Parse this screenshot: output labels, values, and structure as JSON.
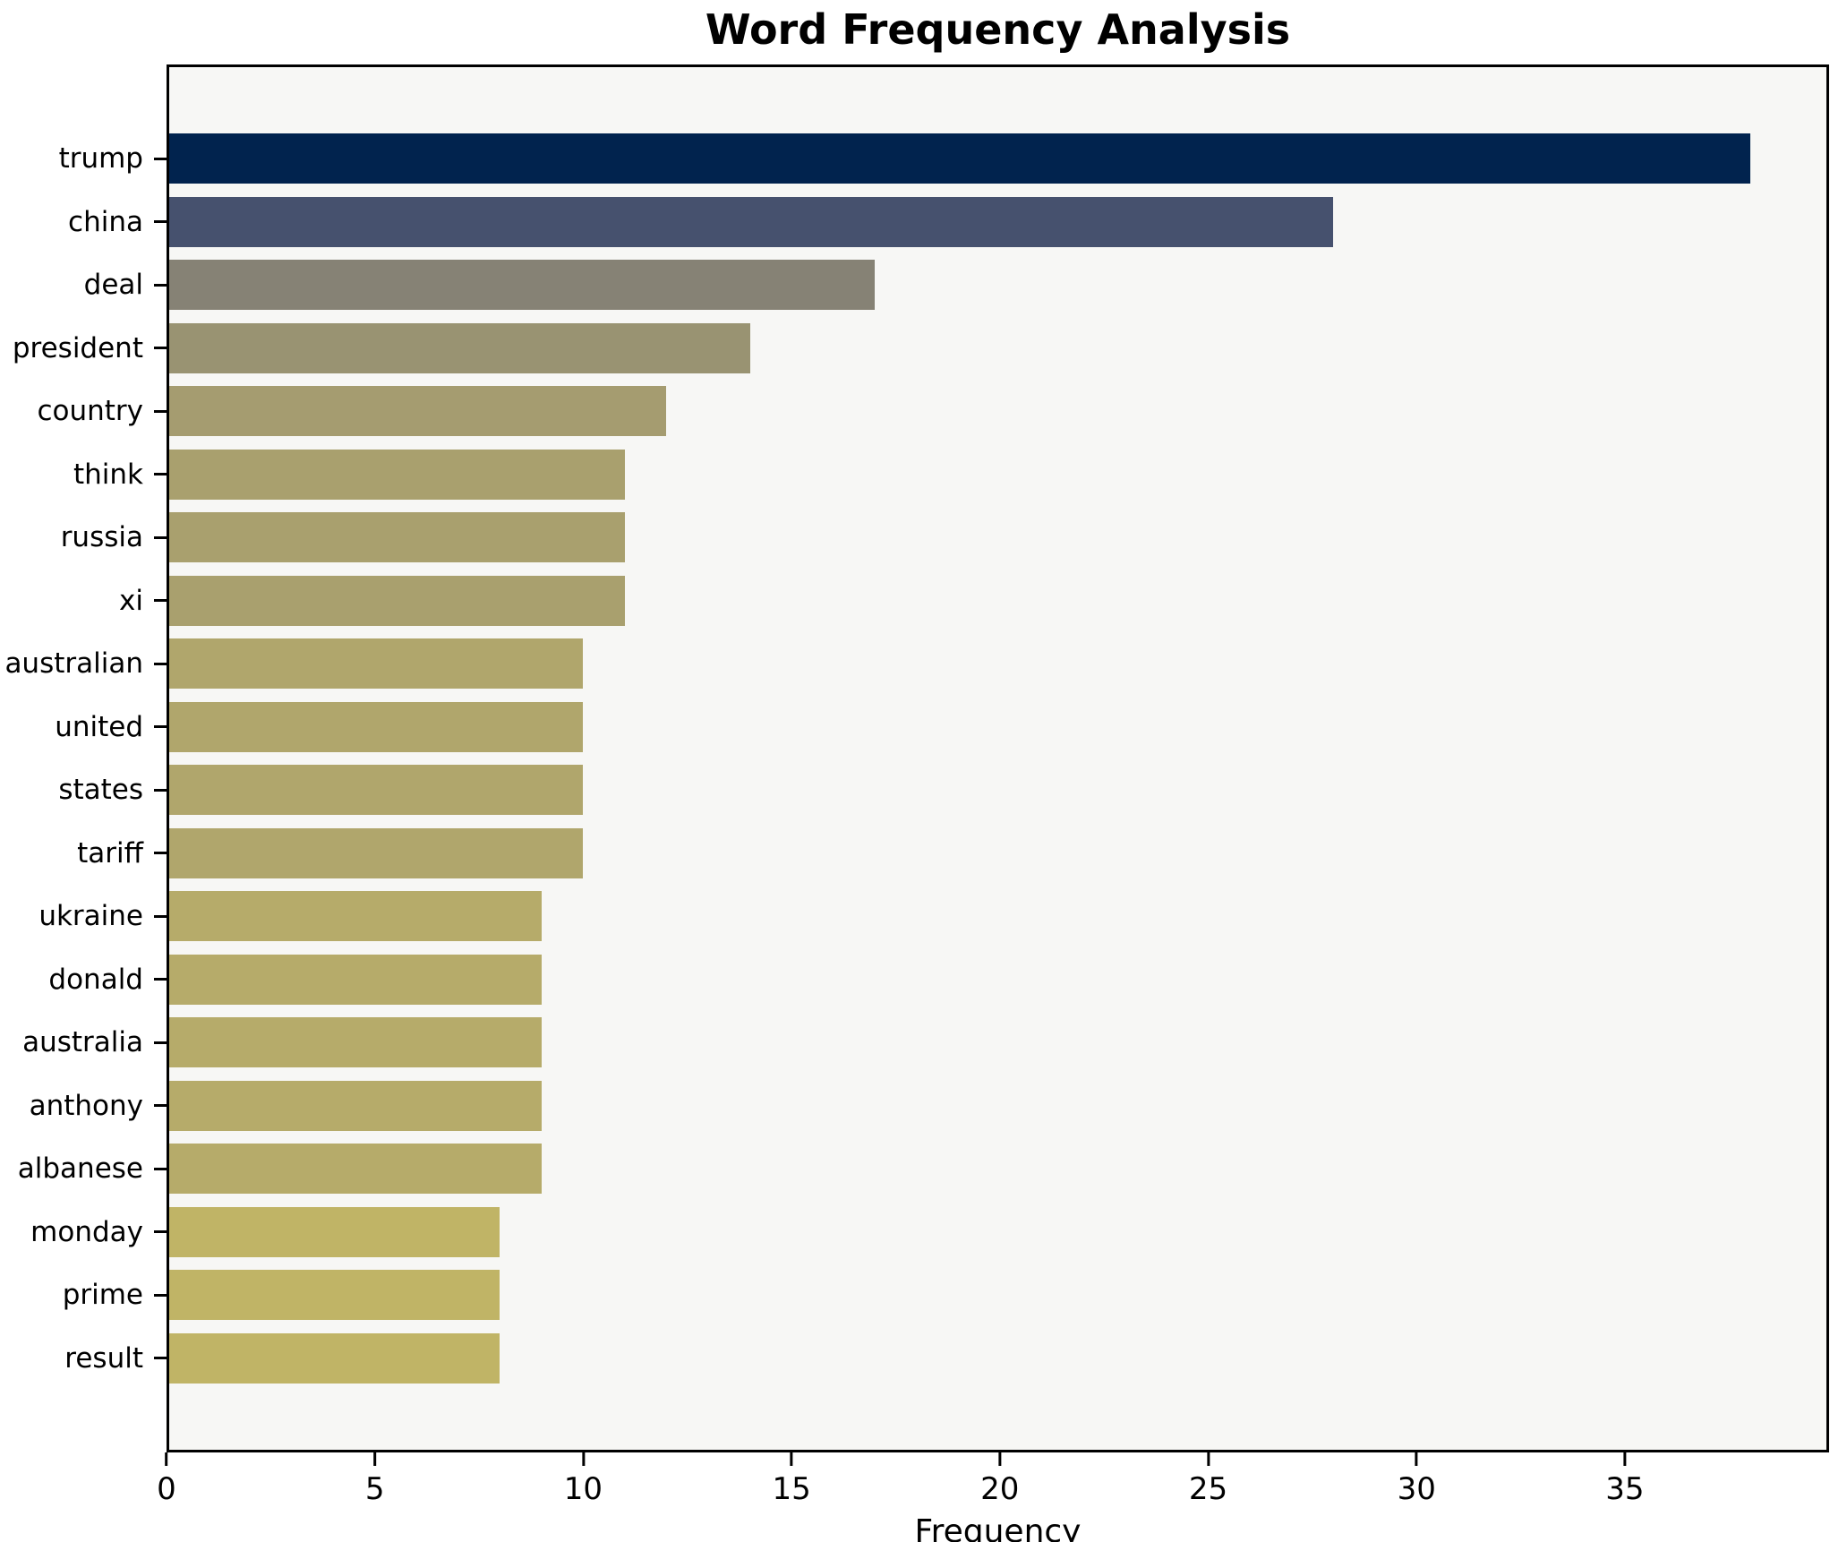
{
  "title": "Word Frequency Analysis",
  "axis": {
    "xlabel": "Frequency"
  },
  "chart_data": {
    "type": "bar",
    "orientation": "horizontal",
    "title": "Word Frequency Analysis",
    "xlabel": "Frequency",
    "ylabel": "",
    "xlim": [
      0,
      39.9
    ],
    "x_ticks": [
      0,
      5,
      10,
      15,
      20,
      25,
      30,
      35
    ],
    "grid": false,
    "legend": "none",
    "plot_background": "#f7f7f5",
    "frame_color": "#000000",
    "categories": [
      "trump",
      "china",
      "deal",
      "president",
      "country",
      "think",
      "russia",
      "xi",
      "australian",
      "united",
      "states",
      "tariff",
      "ukraine",
      "donald",
      "australia",
      "anthony",
      "albanese",
      "monday",
      "prime",
      "result"
    ],
    "values": [
      38,
      28,
      17,
      14,
      12,
      11,
      11,
      11,
      10,
      10,
      10,
      10,
      9,
      9,
      9,
      9,
      9,
      8,
      8,
      8
    ],
    "bar_colors": [
      "#01234e",
      "#46516e",
      "#868275",
      "#999372",
      "#a59c70",
      "#a9a06e",
      "#a9a06e",
      "#a9a06e",
      "#b0a66c",
      "#b0a66c",
      "#b0a66c",
      "#b0a66c",
      "#b6ab6a",
      "#b6ab6a",
      "#b6ab6a",
      "#b6ab6a",
      "#b6ab6a",
      "#c0b466",
      "#c0b466",
      "#c0b466"
    ]
  }
}
